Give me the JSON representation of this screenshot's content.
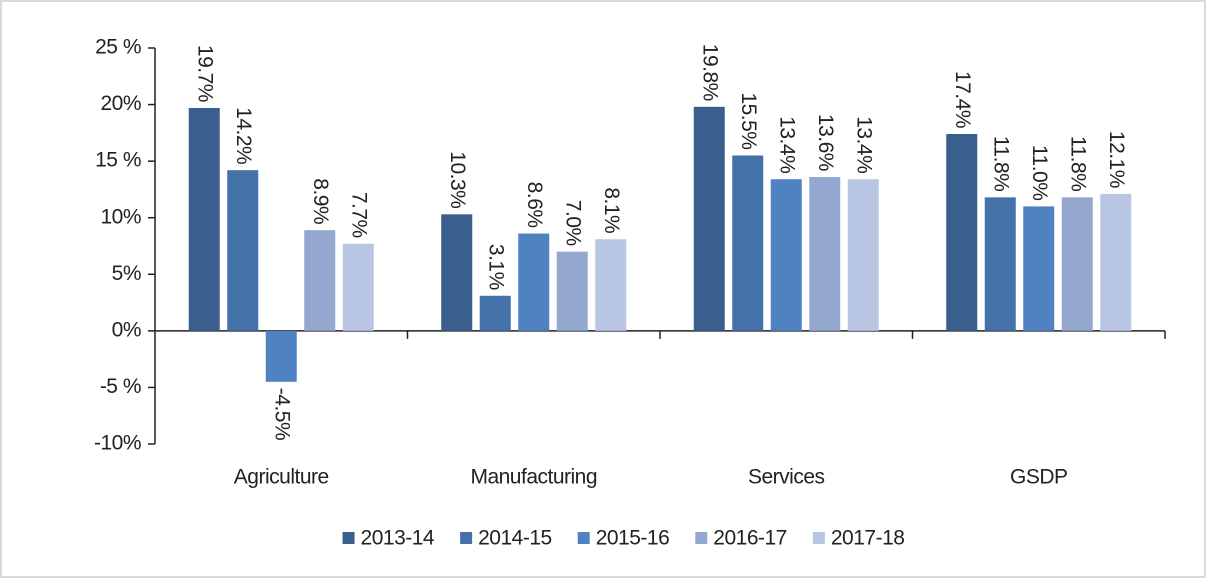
{
  "chart_data": {
    "type": "bar",
    "categories": [
      "Agriculture",
      "Manufacturing",
      "Services",
      "GSDP"
    ],
    "series": [
      {
        "name": "2013-14",
        "color": "#3a5e8e",
        "values": [
          19.7,
          10.3,
          19.8,
          17.4
        ],
        "value_labels": [
          "19.7%",
          "10.3%",
          "19.8%",
          "17.4%"
        ]
      },
      {
        "name": "2014-15",
        "color": "#4571a9",
        "values": [
          14.2,
          3.1,
          15.5,
          11.8
        ],
        "value_labels": [
          "14.2%",
          "3.1%",
          "15.5%",
          "11.8%"
        ]
      },
      {
        "name": "2015-16",
        "color": "#4e82c0",
        "values": [
          -4.5,
          8.6,
          13.4,
          11.0
        ],
        "value_labels": [
          "-4.5%",
          "8.6%",
          "13.4%",
          "11.0%"
        ]
      },
      {
        "name": "2016-17",
        "color": "#94a8cf",
        "values": [
          8.9,
          7.0,
          13.6,
          11.8
        ],
        "value_labels": [
          "8.9%",
          "7.0%",
          "13.6%",
          "11.8%"
        ]
      },
      {
        "name": "2017-18",
        "color": "#b9c6e3",
        "values": [
          7.7,
          8.1,
          13.4,
          12.1
        ],
        "value_labels": [
          "7.7%",
          "8.1%",
          "13.4%",
          "12.1%"
        ]
      }
    ],
    "ylim": [
      -10,
      25
    ],
    "yticks": [
      {
        "value": -10,
        "label": "-10%"
      },
      {
        "value": -5,
        "label": "-5 %"
      },
      {
        "value": 0,
        "label": "0%"
      },
      {
        "value": 5,
        "label": "5%"
      },
      {
        "value": 10,
        "label": "10%"
      },
      {
        "value": 15,
        "label": "15 %"
      },
      {
        "value": 20,
        "label": "20%"
      },
      {
        "value": 25,
        "label": "25 %"
      }
    ],
    "legend": "bottom"
  }
}
